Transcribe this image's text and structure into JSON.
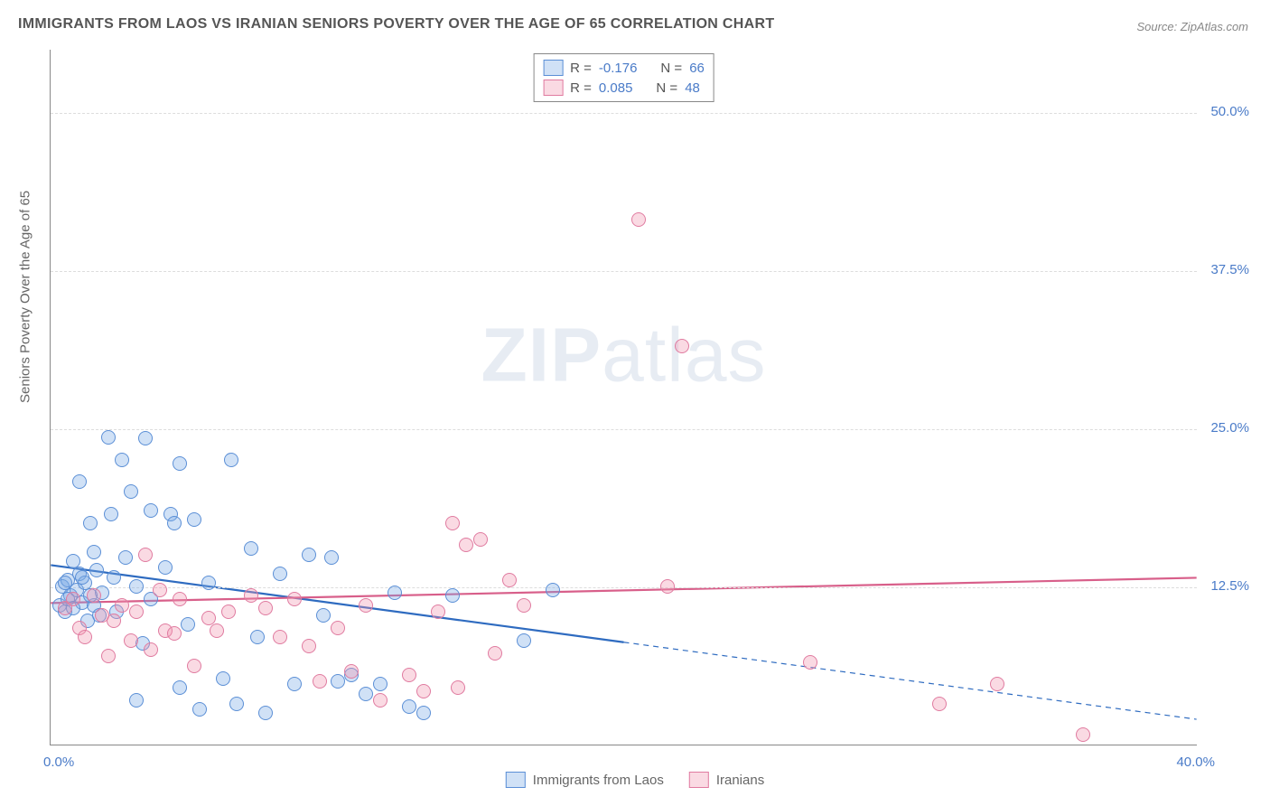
{
  "title": "IMMIGRANTS FROM LAOS VS IRANIAN SENIORS POVERTY OVER THE AGE OF 65 CORRELATION CHART",
  "source": "Source: ZipAtlas.com",
  "y_axis_label": "Seniors Poverty Over the Age of 65",
  "watermark_a": "ZIP",
  "watermark_b": "atlas",
  "chart": {
    "type": "scatter",
    "xlim": [
      0,
      40
    ],
    "ylim": [
      0,
      55
    ],
    "y_ticks": [
      12.5,
      25.0,
      37.5,
      50.0
    ],
    "y_tick_labels": [
      "12.5%",
      "25.0%",
      "37.5%",
      "50.0%"
    ],
    "x_tick_left": "0.0%",
    "x_tick_right": "40.0%",
    "grid_color": "#dddddd",
    "axis_color": "#888888",
    "background": "#ffffff",
    "marker_radius": 8,
    "marker_stroke_width": 1.5,
    "series": [
      {
        "name": "Immigrants from Laos",
        "fill": "rgba(120,170,230,0.35)",
        "stroke": "#5b8fd6",
        "R": "-0.176",
        "N": "66",
        "trend": {
          "y_at_x0": 14.2,
          "y_at_x40": 2.0,
          "solid_until_x": 20,
          "color": "#2e6bc0",
          "width": 2.2
        },
        "points": [
          [
            0.3,
            11
          ],
          [
            0.4,
            12.5
          ],
          [
            0.5,
            10.5
          ],
          [
            0.6,
            13
          ],
          [
            0.7,
            11.8
          ],
          [
            0.8,
            14.5
          ],
          [
            0.9,
            12.2
          ],
          [
            1.0,
            20.8
          ],
          [
            1.0,
            13.5
          ],
          [
            1.1,
            11.2
          ],
          [
            1.2,
            12.8
          ],
          [
            1.3,
            9.8
          ],
          [
            1.4,
            17.5
          ],
          [
            1.5,
            15.2
          ],
          [
            1.5,
            11.0
          ],
          [
            1.6,
            13.8
          ],
          [
            1.8,
            12.0
          ],
          [
            2.0,
            24.3
          ],
          [
            2.1,
            18.2
          ],
          [
            2.2,
            13.2
          ],
          [
            2.3,
            10.5
          ],
          [
            2.5,
            22.5
          ],
          [
            2.6,
            14.8
          ],
          [
            2.8,
            20.0
          ],
          [
            3.0,
            12.5
          ],
          [
            3.0,
            3.5
          ],
          [
            3.2,
            8.0
          ],
          [
            3.3,
            24.2
          ],
          [
            3.5,
            18.5
          ],
          [
            3.5,
            11.5
          ],
          [
            4.0,
            14.0
          ],
          [
            4.2,
            18.2
          ],
          [
            4.3,
            17.5
          ],
          [
            4.5,
            22.2
          ],
          [
            4.5,
            4.5
          ],
          [
            4.8,
            9.5
          ],
          [
            5.0,
            17.8
          ],
          [
            5.2,
            2.8
          ],
          [
            5.5,
            12.8
          ],
          [
            6.0,
            5.2
          ],
          [
            6.3,
            22.5
          ],
          [
            6.5,
            3.2
          ],
          [
            7.0,
            15.5
          ],
          [
            7.2,
            8.5
          ],
          [
            7.5,
            2.5
          ],
          [
            8.0,
            13.5
          ],
          [
            8.5,
            4.8
          ],
          [
            9.0,
            15.0
          ],
          [
            9.5,
            10.2
          ],
          [
            9.8,
            14.8
          ],
          [
            10.0,
            5.0
          ],
          [
            10.5,
            5.5
          ],
          [
            11.0,
            4.0
          ],
          [
            11.5,
            4.8
          ],
          [
            12.0,
            12.0
          ],
          [
            12.5,
            3.0
          ],
          [
            13.0,
            2.5
          ],
          [
            14.0,
            11.8
          ],
          [
            16.5,
            8.2
          ],
          [
            17.5,
            12.2
          ],
          [
            0.5,
            12.8
          ],
          [
            0.6,
            11.5
          ],
          [
            0.8,
            10.8
          ],
          [
            1.1,
            13.2
          ],
          [
            1.4,
            11.8
          ],
          [
            1.7,
            10.2
          ]
        ]
      },
      {
        "name": "Iranians",
        "fill": "rgba(240,150,175,0.35)",
        "stroke": "#e07ba0",
        "R": "0.085",
        "N": "48",
        "trend": {
          "y_at_x0": 11.2,
          "y_at_x40": 13.2,
          "solid_until_x": 40,
          "color": "#d85f8a",
          "width": 2.2
        },
        "points": [
          [
            0.5,
            10.8
          ],
          [
            0.8,
            11.5
          ],
          [
            1.0,
            9.2
          ],
          [
            1.2,
            8.5
          ],
          [
            1.5,
            11.8
          ],
          [
            1.8,
            10.2
          ],
          [
            2.0,
            7.0
          ],
          [
            2.2,
            9.8
          ],
          [
            2.5,
            11.0
          ],
          [
            2.8,
            8.2
          ],
          [
            3.0,
            10.5
          ],
          [
            3.3,
            15.0
          ],
          [
            3.5,
            7.5
          ],
          [
            3.8,
            12.2
          ],
          [
            4.0,
            9.0
          ],
          [
            4.3,
            8.8
          ],
          [
            4.5,
            11.5
          ],
          [
            5.0,
            6.2
          ],
          [
            5.5,
            10.0
          ],
          [
            5.8,
            9.0
          ],
          [
            6.2,
            10.5
          ],
          [
            7.0,
            11.8
          ],
          [
            7.5,
            10.8
          ],
          [
            8.0,
            8.5
          ],
          [
            8.5,
            11.5
          ],
          [
            9.0,
            7.8
          ],
          [
            9.4,
            5.0
          ],
          [
            10.0,
            9.2
          ],
          [
            10.5,
            5.8
          ],
          [
            11.0,
            11.0
          ],
          [
            11.5,
            3.5
          ],
          [
            12.5,
            5.5
          ],
          [
            13.0,
            4.2
          ],
          [
            13.5,
            10.5
          ],
          [
            14.0,
            17.5
          ],
          [
            14.5,
            15.8
          ],
          [
            15.0,
            16.2
          ],
          [
            15.5,
            7.2
          ],
          [
            16.0,
            13.0
          ],
          [
            16.5,
            11.0
          ],
          [
            20.5,
            41.5
          ],
          [
            21.5,
            12.5
          ],
          [
            22.0,
            31.5
          ],
          [
            26.5,
            6.5
          ],
          [
            31.0,
            3.2
          ],
          [
            33.0,
            4.8
          ],
          [
            36.0,
            0.8
          ],
          [
            14.2,
            4.5
          ]
        ]
      }
    ]
  },
  "bottom_legend": {
    "a": "Immigrants from Laos",
    "b": "Iranians"
  },
  "legend_labels": {
    "r": "R =",
    "n": "N ="
  }
}
